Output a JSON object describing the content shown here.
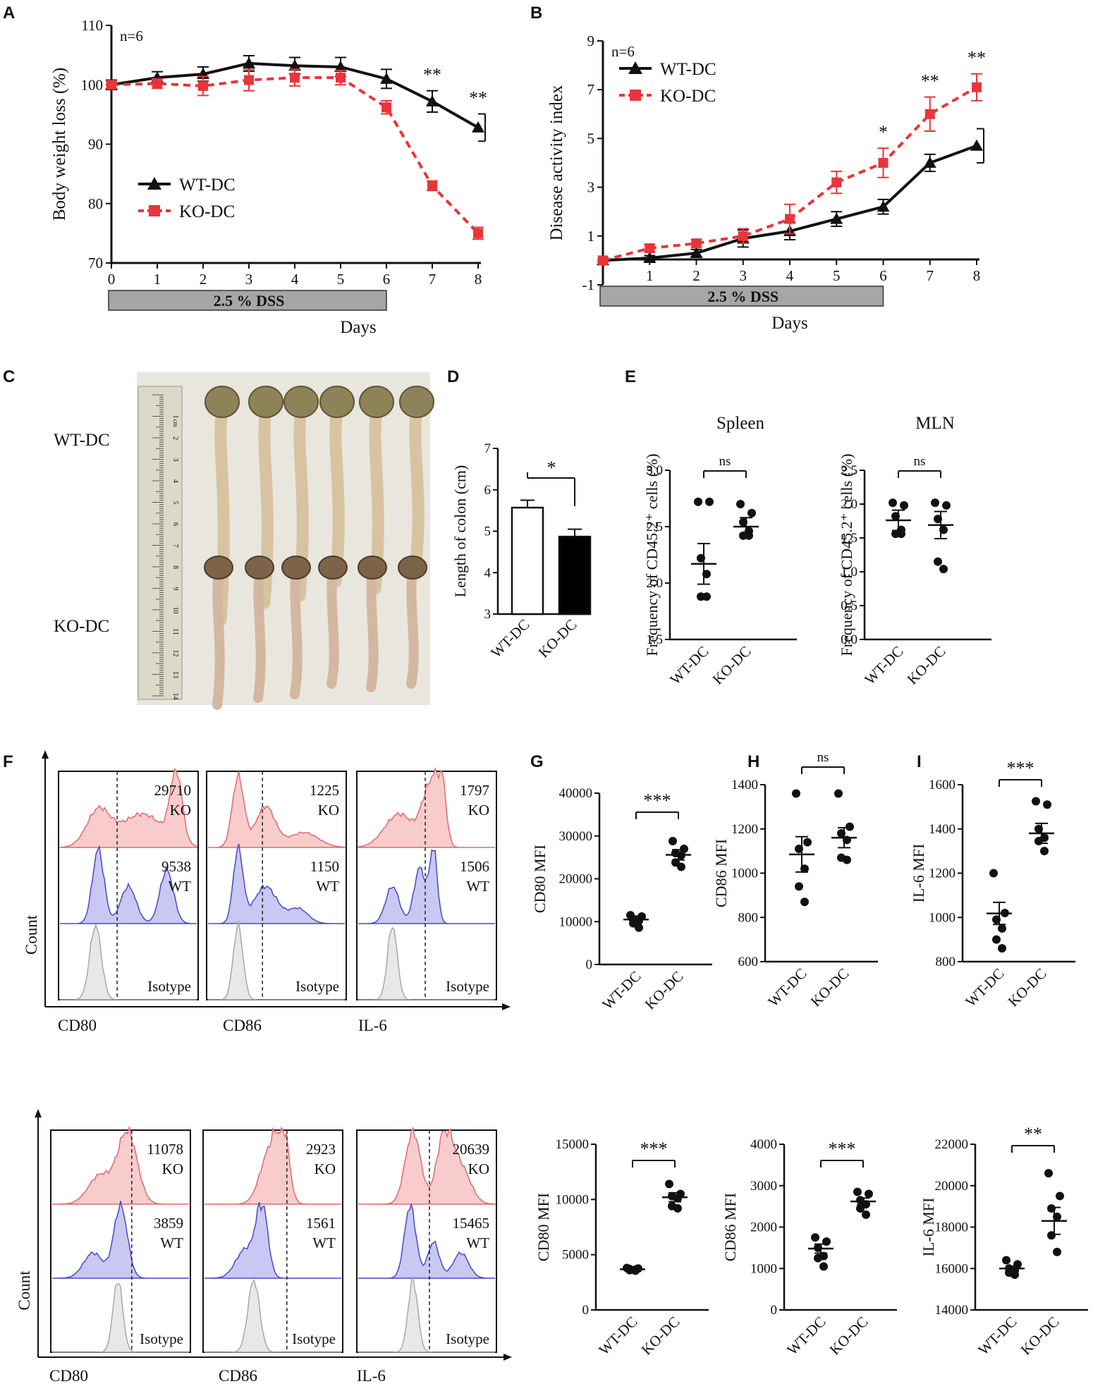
{
  "chart_data": [
    {
      "id": "A",
      "type": "line",
      "panel_label": "A",
      "title": "",
      "xlabel": "Days",
      "ylabel": "Body weight loss (%)",
      "xlim": [
        0,
        8
      ],
      "ylim": [
        70,
        110
      ],
      "xticks": [
        "0",
        "1",
        "2",
        "3",
        "4",
        "5",
        "6",
        "7",
        "8"
      ],
      "yticks": [
        "70",
        "80",
        "90",
        "100",
        "110"
      ],
      "n_label": "n=6",
      "treatment_label": "2.5 %  DSS",
      "treatment_range": [
        0,
        6
      ],
      "series": [
        {
          "name": "WT-DC",
          "color": "#111111",
          "marker": "triangle",
          "dash": false,
          "x": [
            0,
            1,
            2,
            3,
            4,
            5,
            6,
            7,
            8
          ],
          "y": [
            100,
            101.2,
            101.8,
            103.6,
            103.2,
            103.0,
            101.0,
            97.2,
            92.8
          ],
          "err": [
            0.8,
            1.0,
            1.2,
            1.3,
            1.4,
            1.6,
            1.6,
            1.8,
            2.3
          ]
        },
        {
          "name": "KO-DC",
          "color": "#e8353a",
          "marker": "square",
          "dash": true,
          "x": [
            0,
            1,
            2,
            3,
            4,
            5,
            6,
            7,
            8
          ],
          "y": [
            100,
            100.2,
            99.8,
            100.8,
            101.2,
            101.2,
            96.2,
            83.0,
            75.0
          ],
          "err": [
            0.6,
            0.8,
            1.6,
            1.8,
            1.4,
            1.2,
            1.1,
            0.8,
            1.0
          ]
        }
      ],
      "annotations": [
        {
          "x": 7,
          "text": "**"
        },
        {
          "x": 8,
          "text": "**"
        }
      ]
    },
    {
      "id": "B",
      "type": "line",
      "panel_label": "B",
      "title": "",
      "xlabel": "Days",
      "ylabel": "Disease activity index",
      "xlim": [
        0,
        8
      ],
      "ylim": [
        -1,
        9
      ],
      "xticks": [
        "1",
        "2",
        "3",
        "4",
        "5",
        "6",
        "7",
        "8"
      ],
      "yticks": [
        "-1",
        "1",
        "3",
        "5",
        "7",
        "9"
      ],
      "n_label": "n=6",
      "treatment_label": "2.5 % DSS",
      "treatment_range": [
        0,
        6
      ],
      "series": [
        {
          "name": "WT-DC",
          "color": "#111111",
          "marker": "triangle",
          "dash": false,
          "x": [
            0,
            1,
            2,
            3,
            4,
            5,
            6,
            7,
            8
          ],
          "y": [
            0,
            0.1,
            0.3,
            0.9,
            1.2,
            1.7,
            2.2,
            4.0,
            4.7
          ],
          "err": [
            0.05,
            0.1,
            0.15,
            0.35,
            0.35,
            0.3,
            0.3,
            0.35,
            0.7
          ]
        },
        {
          "name": "KO-DC",
          "color": "#e8353a",
          "marker": "square",
          "dash": true,
          "x": [
            0,
            1,
            2,
            3,
            4,
            5,
            6,
            7,
            8
          ],
          "y": [
            0,
            0.5,
            0.7,
            1.0,
            1.7,
            3.2,
            4.0,
            6.0,
            7.1
          ],
          "err": [
            0.05,
            0.15,
            0.15,
            0.3,
            0.6,
            0.45,
            0.6,
            0.7,
            0.55
          ]
        }
      ],
      "annotations": [
        {
          "x": 6,
          "text": "*"
        },
        {
          "x": 7,
          "text": "**"
        },
        {
          "x": 8,
          "text": "**"
        }
      ]
    },
    {
      "id": "C",
      "type": "image",
      "panel_label": "C",
      "row_labels": [
        "WT-DC",
        "KO-DC"
      ],
      "ruler_numbers": [
        "1",
        "2",
        "3",
        "4",
        "5",
        "6",
        "7",
        "8",
        "9",
        "10",
        "11",
        "12",
        "13",
        "14"
      ],
      "ruler_unit": "cm"
    },
    {
      "id": "D",
      "type": "bar",
      "panel_label": "D",
      "categories": [
        "WT-DC",
        "KO-DC"
      ],
      "values": [
        5.57,
        4.87
      ],
      "err": [
        0.18,
        0.18
      ],
      "colors": [
        "#ffffff",
        "#000000"
      ],
      "ylabel": "Length of colon (cm)",
      "ylim": [
        3,
        7
      ],
      "yticks": [
        "3",
        "4",
        "5",
        "6",
        "7"
      ],
      "significance": "*"
    },
    {
      "id": "E1",
      "type": "scatter",
      "panel_label": "E",
      "title": "Spleen",
      "categories": [
        "WT-DC",
        "KO-DC"
      ],
      "points": [
        [
          2.72,
          2.72,
          2.22,
          2.08,
          1.88,
          1.88
        ],
        [
          2.7,
          2.62,
          2.54,
          2.46,
          2.42,
          2.42
        ]
      ],
      "mean": [
        2.17,
        2.5
      ],
      "sem": [
        0.18,
        0.08
      ],
      "ylabel": "Frequency of CD45.2⁺ cells (%)",
      "ylim": [
        1.5,
        3.0
      ],
      "yticks": [
        "1.5",
        "2.0",
        "2.5",
        "3.0"
      ],
      "significance": "ns"
    },
    {
      "id": "E2",
      "type": "scatter",
      "title": "MLN",
      "categories": [
        "WT-DC",
        "KO-DC"
      ],
      "points": [
        [
          2.02,
          1.98,
          1.82,
          1.62,
          1.56,
          1.56
        ],
        [
          2.02,
          1.98,
          1.78,
          1.62,
          1.15,
          1.04
        ]
      ],
      "mean": [
        1.76,
        1.69
      ],
      "sem": [
        0.15,
        0.2
      ],
      "ylabel": "Frequency of CD45.2⁺ cells (%)",
      "ylim": [
        0.0,
        2.5
      ],
      "yticks": [
        "0.0",
        "0.5",
        "1.0",
        "1.5",
        "2.0",
        "2.5"
      ],
      "significance": "ns"
    },
    {
      "id": "F_top",
      "type": "histogram",
      "panel_label": "F",
      "ylabel": "Count",
      "group_labels": [
        "KO",
        "WT",
        "Isotype"
      ],
      "markers": [
        {
          "name": "CD80",
          "ko_mfi": "29710",
          "wt_mfi": "9538"
        },
        {
          "name": "CD86",
          "ko_mfi": "1225",
          "wt_mfi": "1150"
        },
        {
          "name": "IL-6",
          "ko_mfi": "1797",
          "wt_mfi": "1506"
        }
      ]
    },
    {
      "id": "G",
      "type": "scatter",
      "panel_label": "G",
      "categories": [
        "WT-DC",
        "KO-DC"
      ],
      "points": [
        [
          11500,
          11200,
          10400,
          10200,
          9600,
          8600
        ],
        [
          28800,
          27000,
          26000,
          25500,
          23800,
          22800
        ]
      ],
      "mean": [
        10500,
        25600
      ],
      "sem": [
        800,
        1200
      ],
      "ylabel": "CD80 MFI",
      "ylim": [
        0,
        40000
      ],
      "yticks": [
        "0",
        "10000",
        "20000",
        "30000",
        "40000"
      ],
      "significance": "***"
    },
    {
      "id": "H",
      "type": "scatter",
      "panel_label": "H",
      "categories": [
        "WT-DC",
        "KO-DC"
      ],
      "points": [
        [
          1360,
          1140,
          1110,
          1020,
          940,
          870
        ],
        [
          1360,
          1210,
          1180,
          1150,
          1070,
          1060
        ]
      ],
      "mean": [
        1085,
        1160
      ],
      "sem": [
        80,
        45
      ],
      "ylabel": "CD86 MFI",
      "ylim": [
        600,
        1400
      ],
      "yticks": [
        "600",
        "800",
        "1000",
        "1200",
        "1400"
      ],
      "significance": "ns"
    },
    {
      "id": "I",
      "type": "scatter",
      "panel_label": "I",
      "categories": [
        "WT-DC",
        "KO-DC"
      ],
      "points": [
        [
          1200,
          1020,
          990,
          950,
          900,
          860
        ],
        [
          1525,
          1510,
          1400,
          1360,
          1345,
          1300
        ]
      ],
      "mean": [
        1018,
        1380
      ],
      "sem": [
        50,
        45
      ],
      "ylabel": "IL-6 MFI",
      "ylim": [
        800,
        1600
      ],
      "yticks": [
        "800",
        "1000",
        "1200",
        "1400",
        "1600"
      ],
      "significance": "***"
    },
    {
      "id": "F_bottom",
      "type": "histogram",
      "ylabel": "Count",
      "group_labels": [
        "KO",
        "WT",
        "Isotype"
      ],
      "markers": [
        {
          "name": "CD80",
          "ko_mfi": "11078",
          "wt_mfi": "3859"
        },
        {
          "name": "CD86",
          "ko_mfi": "2923",
          "wt_mfi": "1561"
        },
        {
          "name": "IL-6",
          "ko_mfi": "20639",
          "wt_mfi": "15465"
        }
      ]
    },
    {
      "id": "G2",
      "type": "scatter",
      "categories": [
        "WT-DC",
        "KO-DC"
      ],
      "points": [
        [
          3800,
          3750,
          3700,
          3650,
          3600,
          3550
        ],
        [
          11400,
          10500,
          10300,
          10100,
          9400,
          9200
        ]
      ],
      "mean": [
        3680,
        10200
      ],
      "sem": [
        60,
        400
      ],
      "ylabel": "CD80 MFI",
      "ylim": [
        0,
        15000
      ],
      "yticks": [
        "0",
        "5000",
        "10000",
        "15000"
      ],
      "significance": "***"
    },
    {
      "id": "H2",
      "type": "scatter",
      "categories": [
        "WT-DC",
        "KO-DC"
      ],
      "points": [
        [
          1750,
          1650,
          1500,
          1300,
          1250,
          1050
        ],
        [
          2850,
          2800,
          2650,
          2550,
          2450,
          2300
        ]
      ],
      "mean": [
        1480,
        2620
      ],
      "sem": [
        110,
        80
      ],
      "ylabel": "CD86 MFI",
      "ylim": [
        0,
        4000
      ],
      "yticks": [
        "0",
        "1000",
        "2000",
        "3000",
        "4000"
      ],
      "significance": "***"
    },
    {
      "id": "I2",
      "type": "scatter",
      "categories": [
        "WT-DC",
        "KO-DC"
      ],
      "points": [
        [
          16400,
          16200,
          16000,
          15900,
          15800,
          15700
        ],
        [
          20600,
          19500,
          18900,
          18500,
          17600,
          16800
        ]
      ],
      "mean": [
        16000,
        18300
      ],
      "sem": [
        110,
        650
      ],
      "ylabel": "IL-6 MFI",
      "ylim": [
        14000,
        22000
      ],
      "yticks": [
        "14000",
        "16000",
        "18000",
        "20000",
        "22000"
      ],
      "significance": "**"
    }
  ]
}
